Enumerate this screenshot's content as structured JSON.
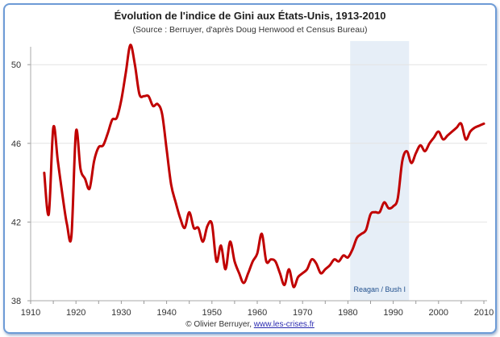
{
  "chart_data": {
    "type": "line",
    "title": "Évolution de l'indice de Gini aux États-Unis, 1913-2010",
    "subtitle": "(Source : Berruyer, d'après Doug Henwood et Census Bureau)",
    "xlabel": "",
    "ylabel": "",
    "xlim": [
      1910,
      2010
    ],
    "ylim": [
      38,
      51.2
    ],
    "xticks": [
      1910,
      1920,
      1930,
      1940,
      1950,
      1960,
      1970,
      1980,
      1990,
      2000,
      2010
    ],
    "yticks": [
      38,
      42,
      46,
      50
    ],
    "grid": true,
    "series": [
      {
        "name": "Indice de Gini",
        "color": "#c00000",
        "x": [
          1913,
          1914,
          1915,
          1916,
          1917,
          1918,
          1919,
          1920,
          1921,
          1922,
          1923,
          1924,
          1925,
          1926,
          1927,
          1928,
          1929,
          1930,
          1931,
          1932,
          1933,
          1934,
          1935,
          1936,
          1937,
          1938,
          1939,
          1940,
          1941,
          1942,
          1943,
          1944,
          1945,
          1946,
          1947,
          1948,
          1949,
          1950,
          1951,
          1952,
          1953,
          1954,
          1955,
          1956,
          1957,
          1958,
          1959,
          1960,
          1961,
          1962,
          1963,
          1964,
          1965,
          1966,
          1967,
          1968,
          1969,
          1970,
          1971,
          1972,
          1973,
          1974,
          1975,
          1976,
          1977,
          1978,
          1979,
          1980,
          1981,
          1982,
          1983,
          1984,
          1985,
          1986,
          1987,
          1988,
          1989,
          1990,
          1991,
          1992,
          1993,
          1994,
          1995,
          1996,
          1997,
          1998,
          1999,
          2000,
          2001,
          2002,
          2003,
          2004,
          2005,
          2006,
          2007,
          2008,
          2009,
          2010
        ],
        "values": [
          44.5,
          42.4,
          46.8,
          45.1,
          43.4,
          41.9,
          41.3,
          46.6,
          44.7,
          44.2,
          43.7,
          45.1,
          45.8,
          45.9,
          46.5,
          47.2,
          47.3,
          48.2,
          49.6,
          51.0,
          50.0,
          48.5,
          48.4,
          48.4,
          47.9,
          48.0,
          47.5,
          45.7,
          43.9,
          43.0,
          42.2,
          41.7,
          42.5,
          41.7,
          41.7,
          41.0,
          41.8,
          41.9,
          40.0,
          40.8,
          39.6,
          41.0,
          40.0,
          39.4,
          38.9,
          39.4,
          40.0,
          40.4,
          41.4,
          40.0,
          40.1,
          40.0,
          39.4,
          38.8,
          39.6,
          38.7,
          39.2,
          39.4,
          39.6,
          40.1,
          39.9,
          39.4,
          39.6,
          39.8,
          40.1,
          40.0,
          40.3,
          40.2,
          40.6,
          41.2,
          41.4,
          41.6,
          42.4,
          42.5,
          42.5,
          43.0,
          42.7,
          42.8,
          43.2,
          45.1,
          45.6,
          45.0,
          45.5,
          45.9,
          45.6,
          46.0,
          46.3,
          46.6,
          46.2,
          46.4,
          46.6,
          46.8,
          47.0,
          46.2,
          46.6,
          46.8,
          46.9,
          47.0
        ]
      }
    ],
    "annotations": [
      {
        "label": "Reagan / Bush I",
        "x_range": [
          1980.5,
          1993.5
        ],
        "color": "#e6eef7",
        "label_color": "#1f4e8c"
      }
    ],
    "legend": "none"
  },
  "footer": {
    "credit": "© Olivier Berruyer, ",
    "link": "www.les-crises.fr"
  }
}
